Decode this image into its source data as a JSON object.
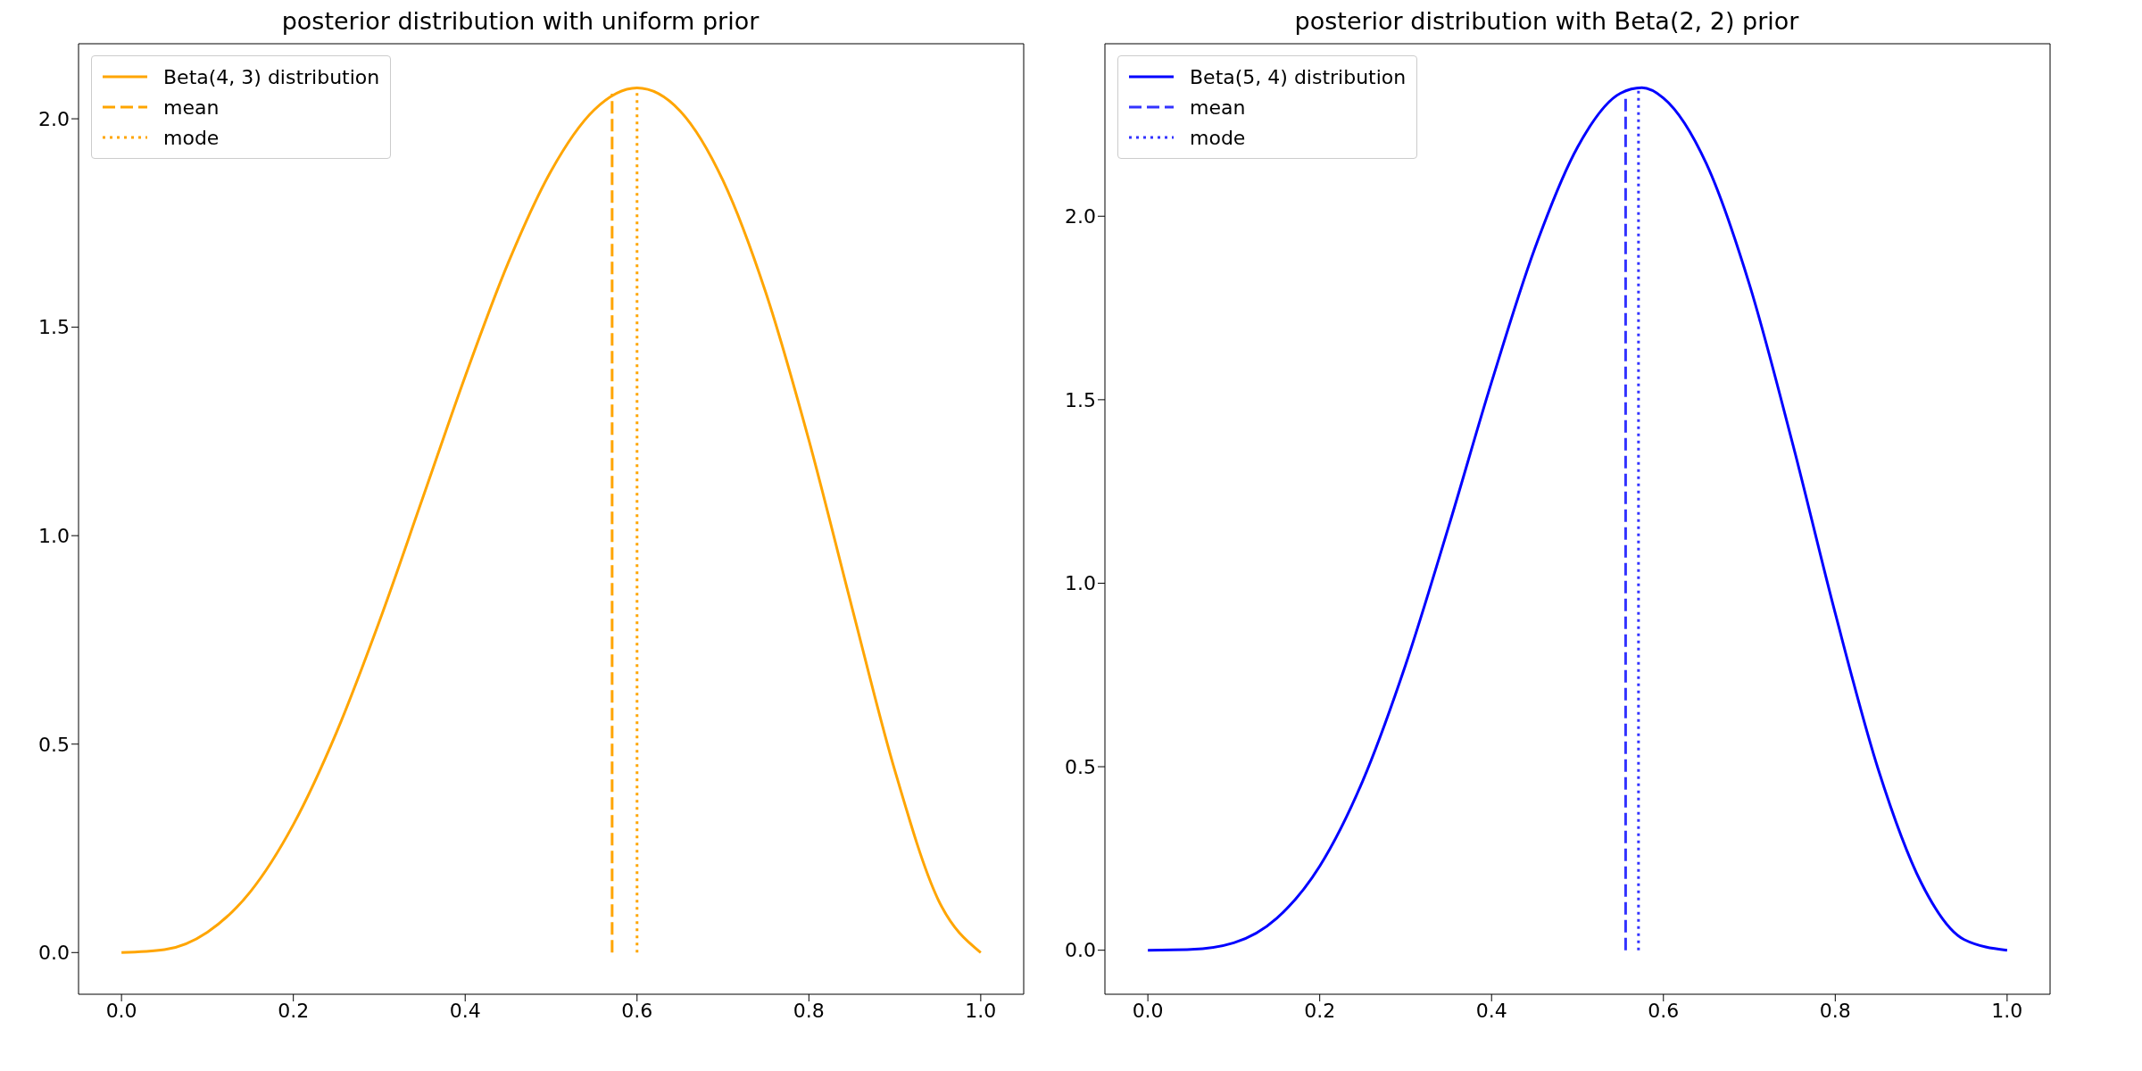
{
  "chart_data": [
    {
      "type": "line",
      "title": "posterior distribution with uniform prior",
      "legend": "top left",
      "marker": "none",
      "xlim": [
        -0.05,
        1.05
      ],
      "xticks": [
        {
          "value": 0,
          "label": "0.0"
        },
        {
          "value": 0.2,
          "label": "0.2"
        },
        {
          "value": 0.4,
          "label": "0.4"
        },
        {
          "value": 0.6,
          "label": "0.6"
        },
        {
          "value": 0.8,
          "label": "0.8"
        },
        {
          "value": 1,
          "label": "1.0"
        }
      ],
      "ylim": [
        -0.1,
        2.18
      ],
      "yticks": [
        {
          "value": 0,
          "label": "0.0"
        },
        {
          "value": 0.5,
          "label": "0.5"
        },
        {
          "value": 1,
          "label": "1.0"
        },
        {
          "value": 1.5,
          "label": "1.5"
        },
        {
          "value": 2,
          "label": "2.0"
        }
      ],
      "series": [
        {
          "name": "Beta(4, 3) distribution",
          "color": "#ffa500",
          "line_style": "solid",
          "x": [
            0,
            0.05,
            0.1,
            0.15,
            0.2,
            0.25,
            0.3,
            0.35,
            0.4,
            0.45,
            0.5,
            0.55,
            0.6,
            0.65,
            0.7,
            0.75,
            0.8,
            0.85,
            0.9,
            0.95,
            1
          ],
          "values": [
            0,
            0.007,
            0.049,
            0.146,
            0.307,
            0.527,
            0.794,
            1.087,
            1.382,
            1.654,
            1.875,
            2.021,
            2.074,
            2.019,
            1.852,
            1.582,
            1.229,
            0.829,
            0.437,
            0.129,
            0
          ]
        },
        {
          "name": "mean",
          "color": "#ffa500",
          "line_style": "dashed",
          "x": [
            0.571,
            0.571
          ],
          "values": [
            0,
            2.06
          ]
        },
        {
          "name": "mode",
          "color": "#ffa500",
          "line_style": "dotted",
          "x": [
            0.6,
            0.6
          ],
          "values": [
            0,
            2.07
          ]
        }
      ]
    },
    {
      "type": "line",
      "title": "posterior distribution with Beta(2, 2) prior",
      "legend": "top left",
      "marker": "none",
      "xlim": [
        -0.05,
        1.05
      ],
      "xticks": [
        {
          "value": 0,
          "label": "0.0"
        },
        {
          "value": 0.2,
          "label": "0.2"
        },
        {
          "value": 0.4,
          "label": "0.4"
        },
        {
          "value": 0.6,
          "label": "0.6"
        },
        {
          "value": 0.8,
          "label": "0.8"
        },
        {
          "value": 1,
          "label": "1.0"
        }
      ],
      "ylim": [
        -0.12,
        2.47
      ],
      "yticks": [
        {
          "value": 0,
          "label": "0.0"
        },
        {
          "value": 0.5,
          "label": "0.5"
        },
        {
          "value": 1,
          "label": "1.0"
        },
        {
          "value": 1.5,
          "label": "1.5"
        },
        {
          "value": 2,
          "label": "2.0"
        }
      ],
      "series": [
        {
          "name": "Beta(5, 4) distribution",
          "color": "#0000ff",
          "line_style": "solid",
          "x": [
            0,
            0.05,
            0.1,
            0.15,
            0.2,
            0.25,
            0.3,
            0.35,
            0.4,
            0.45,
            0.5,
            0.55,
            0.575,
            0.6,
            0.65,
            0.7,
            0.75,
            0.8,
            0.85,
            0.9,
            0.95,
            1
          ],
          "values": [
            0,
            0.002,
            0.02,
            0.087,
            0.229,
            0.461,
            0.778,
            1.154,
            1.548,
            1.91,
            2.188,
            2.335,
            2.35,
            2.322,
            2.143,
            1.815,
            1.384,
            0.918,
            0.493,
            0.184,
            0.029,
            0
          ]
        },
        {
          "name": "mean",
          "color": "#3333ff",
          "line_style": "dashed",
          "x": [
            0.556,
            0.556
          ],
          "values": [
            0,
            2.33
          ]
        },
        {
          "name": "mode",
          "color": "#3333ff",
          "line_style": "dotted",
          "x": [
            0.571,
            0.571
          ],
          "values": [
            0,
            2.35
          ]
        }
      ]
    }
  ]
}
